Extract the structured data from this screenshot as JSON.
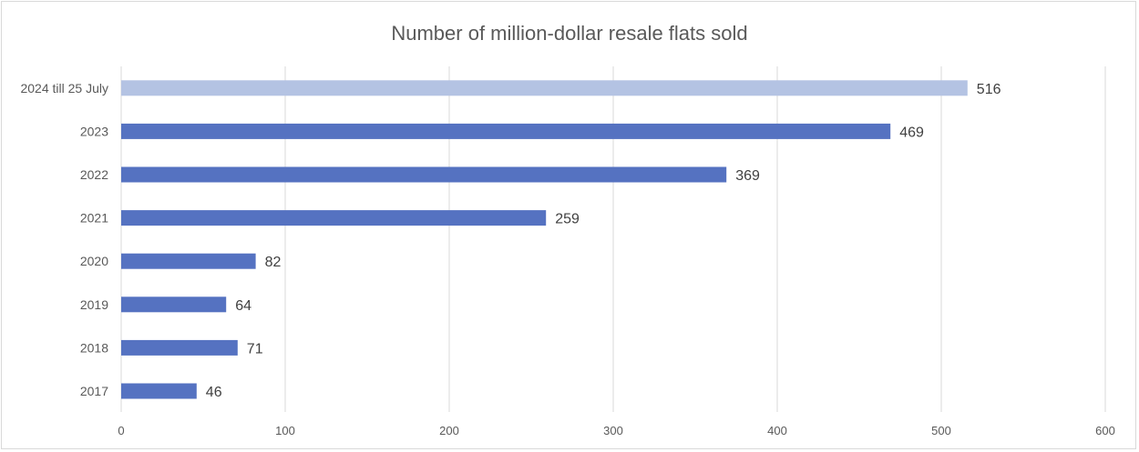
{
  "chart_data": {
    "type": "bar",
    "orientation": "horizontal",
    "title": "Number of million-dollar resale flats sold",
    "xlabel": "",
    "ylabel": "",
    "categories": [
      "2024 till 25 July",
      "2023",
      "2022",
      "2021",
      "2020",
      "2019",
      "2018",
      "2017"
    ],
    "values": [
      516,
      469,
      369,
      259,
      82,
      64,
      71,
      46
    ],
    "bar_colors": [
      "#b4c3e3",
      "#5572c1",
      "#5572c1",
      "#5572c1",
      "#5572c1",
      "#5572c1",
      "#5572c1",
      "#5572c1"
    ],
    "xlim": [
      0,
      600
    ],
    "xticks": [
      0,
      100,
      200,
      300,
      400,
      500,
      600
    ],
    "grid": "vertical",
    "legend": "none",
    "data_labels": true
  },
  "colors": {
    "bar": "#5572c1",
    "bar_highlight": "#b4c3e3",
    "grid": "#d9d9d9",
    "text": "#595959"
  }
}
